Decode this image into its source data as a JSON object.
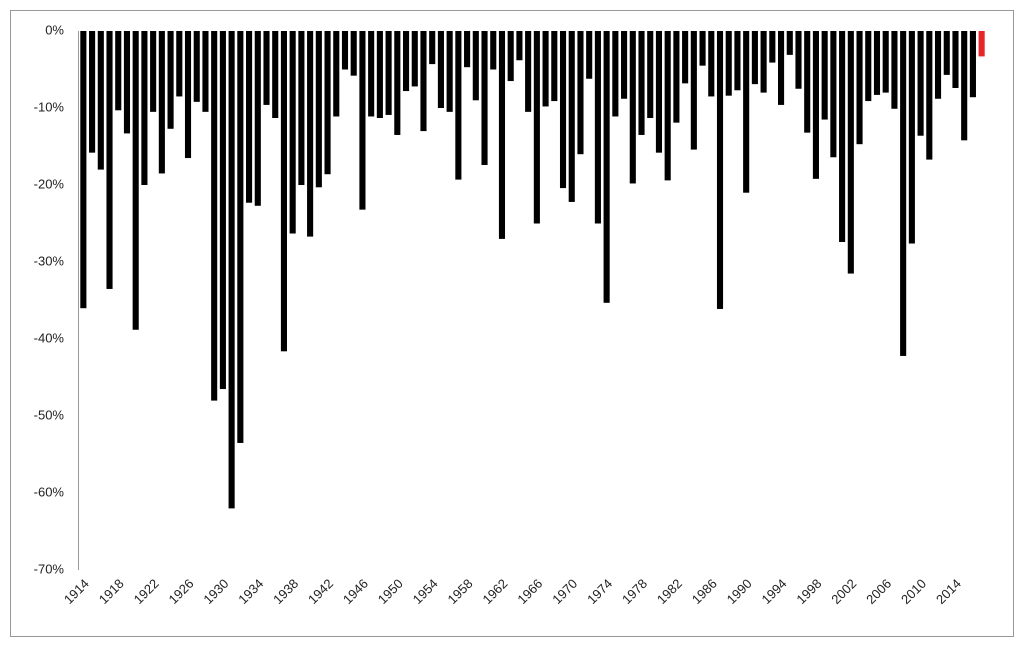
{
  "chart_data": {
    "type": "bar",
    "categories": [
      "1914",
      null,
      null,
      null,
      "1918",
      null,
      null,
      null,
      "1922",
      null,
      null,
      null,
      "1926",
      null,
      null,
      null,
      "1930",
      null,
      null,
      null,
      "1934",
      null,
      null,
      null,
      "1938",
      null,
      null,
      null,
      "1942",
      null,
      null,
      null,
      "1946",
      null,
      null,
      null,
      "1950",
      null,
      null,
      null,
      "1954",
      null,
      null,
      null,
      "1958",
      null,
      null,
      null,
      "1962",
      null,
      null,
      null,
      "1966",
      null,
      null,
      null,
      "1970",
      null,
      null,
      null,
      "1974",
      null,
      null,
      null,
      "1978",
      null,
      null,
      null,
      "1982",
      null,
      null,
      null,
      "1986",
      null,
      null,
      null,
      "1990",
      null,
      null,
      null,
      "1994",
      null,
      null,
      null,
      "1998",
      null,
      null,
      null,
      "2002",
      null,
      null,
      null,
      "2006",
      null,
      null,
      null,
      "2010",
      null,
      null,
      null,
      "2014",
      null,
      null,
      null
    ],
    "values": [
      -36,
      -15.8,
      -18,
      -33.5,
      -10.3,
      -13.3,
      -38.8,
      -20,
      -10.5,
      -18.5,
      -12.7,
      -8.5,
      -16.5,
      -9.2,
      -10.5,
      -48,
      -46.5,
      -62,
      -53.5,
      -22.3,
      -22.7,
      -9.6,
      -11.3,
      -41.6,
      -26.3,
      -20,
      -26.7,
      -20.3,
      -18.6,
      -11.1,
      -5,
      -5.8,
      -23.2,
      -11.1,
      -11.3,
      -10.9,
      -13.5,
      -7.8,
      -7.2,
      -13,
      -4.3,
      -10,
      -10.5,
      -19.3,
      -4.7,
      -9,
      -17.4,
      -5,
      -27,
      -6.5,
      -3.8,
      -10.5,
      -25,
      -9.8,
      -9.1,
      -20.4,
      -22.2,
      -16,
      -6.2,
      -25,
      -35.3,
      -11.1,
      -8.8,
      -19.8,
      -13.5,
      -11.3,
      -15.8,
      -19.4,
      -11.9,
      -6.8,
      -15.4,
      -4.5,
      -8.5,
      -36.1,
      -8.4,
      -7.7,
      -21,
      -6.9,
      -8,
      -4.1,
      -9.6,
      -3.1,
      -7.5,
      -13.2,
      -19.2,
      -11.5,
      -16.4,
      -27.4,
      -31.5,
      -14.7,
      -9.1,
      -8.3,
      -8,
      -10.1,
      -42.2,
      -27.6,
      -13.6,
      -16.7,
      -8.8,
      -5.7,
      -7.4,
      -14.2,
      -8.6,
      -3.3
    ],
    "colors": [
      "#000000",
      "#000000",
      "#000000",
      "#000000",
      "#000000",
      "#000000",
      "#000000",
      "#000000",
      "#000000",
      "#000000",
      "#000000",
      "#000000",
      "#000000",
      "#000000",
      "#000000",
      "#000000",
      "#000000",
      "#000000",
      "#000000",
      "#000000",
      "#000000",
      "#000000",
      "#000000",
      "#000000",
      "#000000",
      "#000000",
      "#000000",
      "#000000",
      "#000000",
      "#000000",
      "#000000",
      "#000000",
      "#000000",
      "#000000",
      "#000000",
      "#000000",
      "#000000",
      "#000000",
      "#000000",
      "#000000",
      "#000000",
      "#000000",
      "#000000",
      "#000000",
      "#000000",
      "#000000",
      "#000000",
      "#000000",
      "#000000",
      "#000000",
      "#000000",
      "#000000",
      "#000000",
      "#000000",
      "#000000",
      "#000000",
      "#000000",
      "#000000",
      "#000000",
      "#000000",
      "#000000",
      "#000000",
      "#000000",
      "#000000",
      "#000000",
      "#000000",
      "#000000",
      "#000000",
      "#000000",
      "#000000",
      "#000000",
      "#000000",
      "#000000",
      "#000000",
      "#000000",
      "#000000",
      "#000000",
      "#000000",
      "#000000",
      "#000000",
      "#000000",
      "#000000",
      "#000000",
      "#000000",
      "#000000",
      "#000000",
      "#000000",
      "#000000",
      "#000000",
      "#000000",
      "#000000",
      "#000000",
      "#000000",
      "#000000",
      "#000000",
      "#000000",
      "#000000",
      "#000000",
      "#000000",
      "#000000",
      "#000000",
      "#000000",
      "#000000",
      "#e8262a"
    ],
    "ylim": [
      -70,
      0
    ],
    "yticks": [
      {
        "value": 0,
        "label": "0%"
      },
      {
        "value": -10,
        "label": "-10%"
      },
      {
        "value": -20,
        "label": "-20%"
      },
      {
        "value": -30,
        "label": "-30%"
      },
      {
        "value": -40,
        "label": "-40%"
      },
      {
        "value": -50,
        "label": "-50%"
      },
      {
        "value": -60,
        "label": "-60%"
      },
      {
        "value": -70,
        "label": "-70%"
      }
    ],
    "grid": false
  }
}
